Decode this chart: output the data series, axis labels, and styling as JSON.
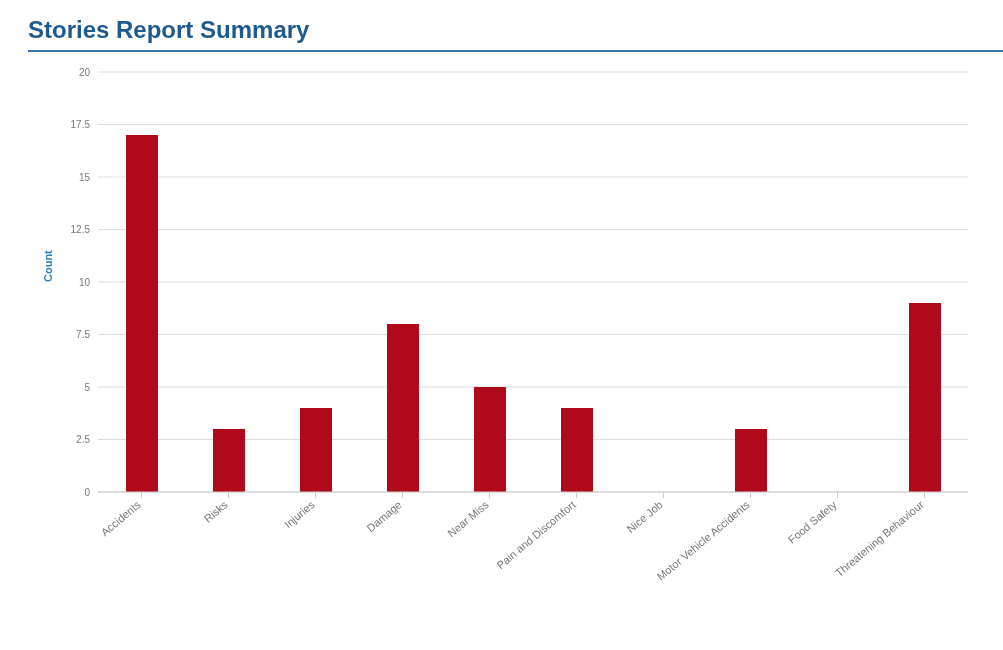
{
  "chart_data": {
    "type": "bar",
    "title": "Stories Report Summary",
    "ylabel": "Count",
    "categories": [
      "Accidents",
      "Risks",
      "Injuries",
      "Damage",
      "Near Miss",
      "Pain and Discomfort",
      "Nice Job",
      "Motor Vehicle Accidents",
      "Food Safety",
      "Threatening Behaviour"
    ],
    "values": [
      17,
      3,
      4,
      8,
      5,
      4,
      0,
      3,
      0,
      9
    ],
    "color": "#b00a1a",
    "ylim": [
      0,
      20
    ],
    "yticks": [
      0,
      2.5,
      5,
      7.5,
      10,
      12.5,
      15,
      17.5,
      20
    ],
    "grid": "y",
    "legend": false
  }
}
